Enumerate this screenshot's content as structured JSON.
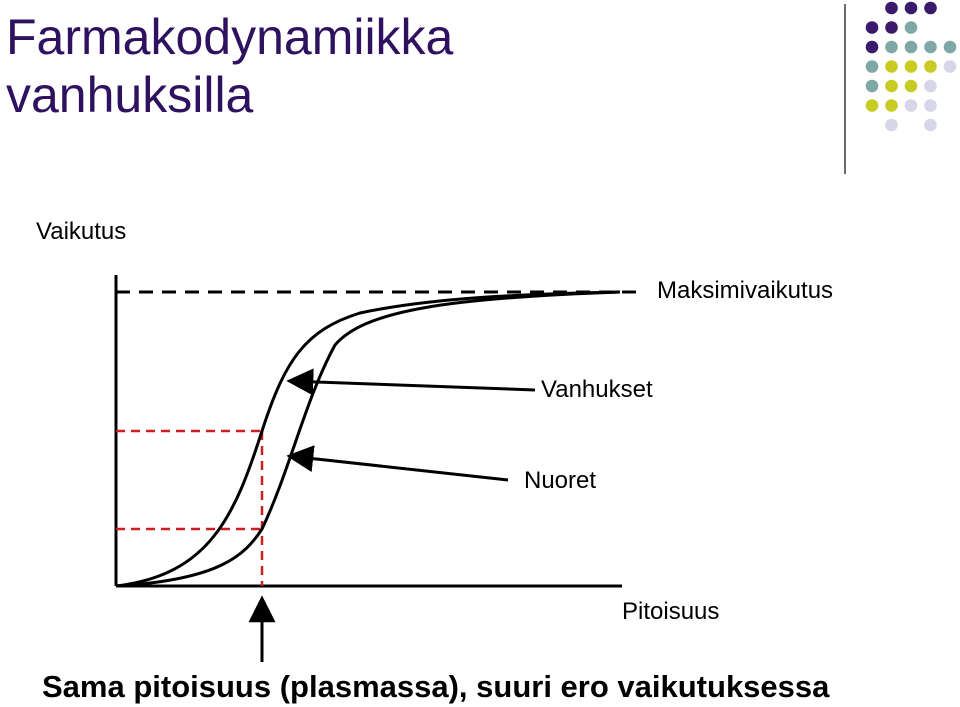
{
  "slide": {
    "title_line1": "Farmakodynamiikka",
    "title_line2": "vanhuksilla"
  },
  "diagram": {
    "y_axis_label": "Vaikutus",
    "x_axis_label": "Pitoisuus",
    "max_effect_label": "Maksimivaikutus",
    "elderly_label": "Vanhukset",
    "young_label": "Nuoret",
    "caption": "Sama pitoisuus (plasmassa), suuri ero vaikutuksessa"
  },
  "colors": {
    "title": "#2e1260",
    "dashed_reference": "#cc2020",
    "dot_purple": "#3b1a6b",
    "dot_teal": "#7fa7a6",
    "dot_yellow": "#c8cc22",
    "dot_lavender": "#d7d6e8"
  }
}
